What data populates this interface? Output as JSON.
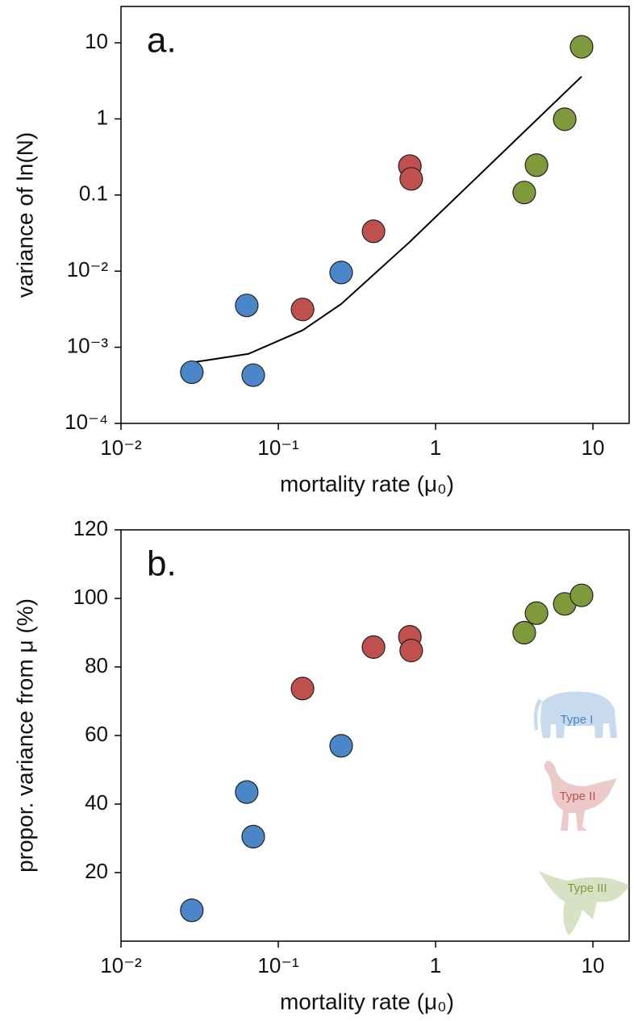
{
  "chart_data": [
    {
      "type": "scatter",
      "label": "a.",
      "xlabel": "mortality rate (μ₀)",
      "ylabel": "variance of ln(N)",
      "xlog": true,
      "ylog": true,
      "xlim": [
        0.01,
        17
      ],
      "ylim": [
        0.0001,
        30
      ],
      "xticks": [
        {
          "value": 0.01,
          "label": "10⁻²"
        },
        {
          "value": 0.1,
          "label": "10⁻¹"
        },
        1,
        10
      ],
      "yticks": [
        {
          "value": 0.0001,
          "label": "10⁻⁴"
        },
        {
          "value": 0.001,
          "label": "10⁻³"
        },
        {
          "value": 0.01,
          "label": "10⁻²"
        },
        0.1,
        1,
        10
      ],
      "series": [
        {
          "name": "Type I",
          "color": "#4a86c8",
          "x": [
            0.0282,
            0.063,
            0.0693,
            0.251
          ],
          "values": [
            0.00047,
            0.00355,
            0.00043,
            0.0096
          ]
        },
        {
          "name": "Type II",
          "color": "#c0504d",
          "x": [
            0.1426,
            0.403,
            0.686,
            0.7
          ],
          "values": [
            0.00314,
            0.0334,
            0.24,
            0.163
          ]
        },
        {
          "name": "Type III",
          "color": "#7f9a3a",
          "x": [
            3.66,
            4.38,
            6.62,
            8.47
          ],
          "values": [
            0.108,
            0.247,
            0.99,
            8.85
          ]
        }
      ],
      "model_line": {
        "color": "#000000",
        "x": [
          0.0282,
          0.0646,
          0.1426,
          0.251,
          0.686,
          8.47
        ],
        "values": [
          0.00063,
          0.00082,
          0.00167,
          0.0037,
          0.0243,
          3.6
        ]
      }
    },
    {
      "type": "scatter",
      "label": "b.",
      "xlabel": "mortality rate (μ₀)",
      "ylabel": "propor. variance from μ (%)",
      "xlog": true,
      "ylog": false,
      "xlim": [
        0.01,
        17
      ],
      "ylim": [
        0,
        120
      ],
      "xticks": [
        {
          "value": 0.01,
          "label": "10⁻²"
        },
        {
          "value": 0.1,
          "label": "10⁻¹"
        },
        1,
        10
      ],
      "yticks": [
        20,
        40,
        60,
        80,
        100,
        120
      ],
      "series": [
        {
          "name": "Type I",
          "color": "#4a86c8",
          "x": [
            0.0282,
            0.063,
            0.0693,
            0.251
          ],
          "values": [
            9,
            43.5,
            30.5,
            57
          ]
        },
        {
          "name": "Type II",
          "color": "#c0504d",
          "x": [
            0.1426,
            0.403,
            0.686,
            0.7
          ],
          "values": [
            73.7,
            85.8,
            88.8,
            84.8
          ]
        },
        {
          "name": "Type III",
          "color": "#7f9a3a",
          "x": [
            3.66,
            4.38,
            6.62,
            8.47
          ],
          "values": [
            90,
            95.7,
            98.4,
            100.9
          ]
        }
      ]
    }
  ]
}
